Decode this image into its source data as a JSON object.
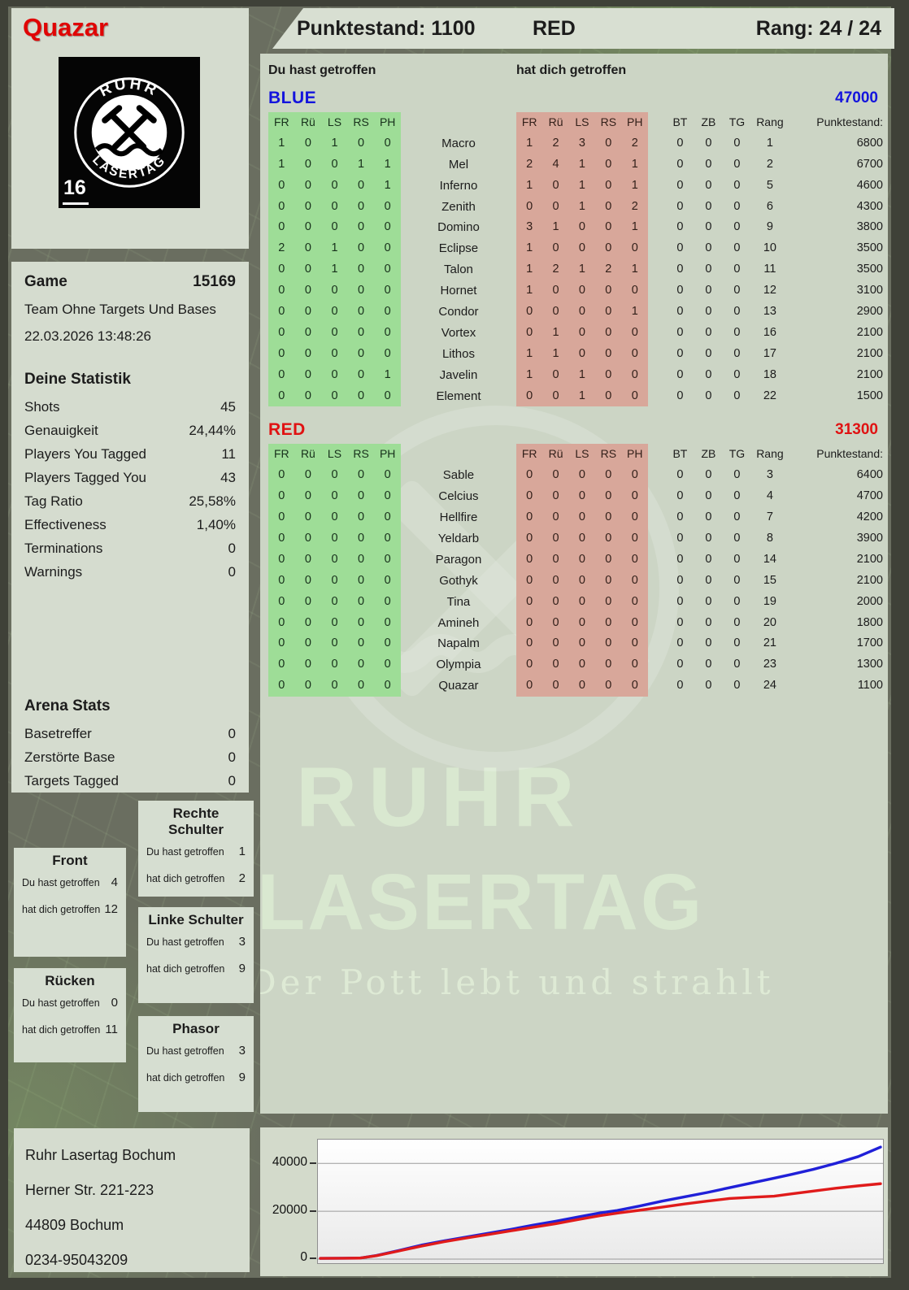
{
  "player": {
    "name": "Quazar"
  },
  "header": {
    "punktestand": "Punktestand: 1100",
    "team": "RED",
    "rang": "Rang: 24 / 24"
  },
  "logo": {
    "arc_top": "RUHR",
    "arc_bottom": "LASERTAG",
    "badge": "16"
  },
  "game": {
    "label": "Game",
    "number": "15169",
    "mode": "Team Ohne Targets Und Bases",
    "datetime": "22.03.2026 13:48:26"
  },
  "stats": {
    "title": "Deine Statistik",
    "rows": [
      [
        "Shots",
        "45"
      ],
      [
        "Genauigkeit",
        "24,44%"
      ],
      [
        "Players You Tagged",
        "11"
      ],
      [
        "Players Tagged You",
        "43"
      ],
      [
        "Tag Ratio",
        "25,58%"
      ],
      [
        "Effectiveness",
        "1,40%"
      ],
      [
        "Terminations",
        "0"
      ],
      [
        "Warnings",
        "0"
      ]
    ]
  },
  "arena": {
    "title": "Arena Stats",
    "rows": [
      [
        "Basetreffer",
        "0"
      ],
      [
        "Zerstörte Base",
        "0"
      ],
      [
        "Targets Tagged",
        "0"
      ]
    ]
  },
  "hit_labels": {
    "du": "Du hast getroffen",
    "dich": "hat dich getroffen"
  },
  "hitzones": [
    {
      "title": "Rechte Schulter",
      "du": "1",
      "dich": "2"
    },
    {
      "title": "Front",
      "du": "4",
      "dich": "12"
    },
    {
      "title": "Linke Schulter",
      "du": "3",
      "dich": "9"
    },
    {
      "title": "Rücken",
      "du": "0",
      "dich": "11"
    },
    {
      "title": "Phasor",
      "du": "3",
      "dich": "9"
    }
  ],
  "address": {
    "lines": [
      "Ruhr Lasertag Bochum",
      "Herner Str. 221-223",
      "44809 Bochum",
      "0234-95043209"
    ]
  },
  "tables": {
    "du_label": "Du hast getroffen",
    "dich_label": "hat dich getroffen",
    "col_headers_left": [
      "FR",
      "Rü",
      "LS",
      "RS",
      "PH"
    ],
    "col_headers_right": [
      "BT",
      "ZB",
      "TG",
      "Rang",
      "Punktestand:"
    ],
    "teams": [
      {
        "name": "BLUE",
        "color": "#1414dd",
        "total": "47000",
        "rows": [
          {
            "player": "Macro",
            "du": [
              "1",
              "0",
              "1",
              "0",
              "0"
            ],
            "dich": [
              "1",
              "2",
              "3",
              "0",
              "2"
            ],
            "bt": "0",
            "zb": "0",
            "tg": "0",
            "rang": "1",
            "punkte": "6800"
          },
          {
            "player": "Mel",
            "du": [
              "1",
              "0",
              "0",
              "1",
              "1"
            ],
            "dich": [
              "2",
              "4",
              "1",
              "0",
              "1"
            ],
            "bt": "0",
            "zb": "0",
            "tg": "0",
            "rang": "2",
            "punkte": "6700"
          },
          {
            "player": "Inferno",
            "du": [
              "0",
              "0",
              "0",
              "0",
              "1"
            ],
            "dich": [
              "1",
              "0",
              "1",
              "0",
              "1"
            ],
            "bt": "0",
            "zb": "0",
            "tg": "0",
            "rang": "5",
            "punkte": "4600"
          },
          {
            "player": "Zenith",
            "du": [
              "0",
              "0",
              "0",
              "0",
              "0"
            ],
            "dich": [
              "0",
              "0",
              "1",
              "0",
              "2"
            ],
            "bt": "0",
            "zb": "0",
            "tg": "0",
            "rang": "6",
            "punkte": "4300"
          },
          {
            "player": "Domino",
            "du": [
              "0",
              "0",
              "0",
              "0",
              "0"
            ],
            "dich": [
              "3",
              "1",
              "0",
              "0",
              "1"
            ],
            "bt": "0",
            "zb": "0",
            "tg": "0",
            "rang": "9",
            "punkte": "3800"
          },
          {
            "player": "Eclipse",
            "du": [
              "2",
              "0",
              "1",
              "0",
              "0"
            ],
            "dich": [
              "1",
              "0",
              "0",
              "0",
              "0"
            ],
            "bt": "0",
            "zb": "0",
            "tg": "0",
            "rang": "10",
            "punkte": "3500"
          },
          {
            "player": "Talon",
            "du": [
              "0",
              "0",
              "1",
              "0",
              "0"
            ],
            "dich": [
              "1",
              "2",
              "1",
              "2",
              "1"
            ],
            "bt": "0",
            "zb": "0",
            "tg": "0",
            "rang": "11",
            "punkte": "3500"
          },
          {
            "player": "Hornet",
            "du": [
              "0",
              "0",
              "0",
              "0",
              "0"
            ],
            "dich": [
              "1",
              "0",
              "0",
              "0",
              "0"
            ],
            "bt": "0",
            "zb": "0",
            "tg": "0",
            "rang": "12",
            "punkte": "3100"
          },
          {
            "player": "Condor",
            "du": [
              "0",
              "0",
              "0",
              "0",
              "0"
            ],
            "dich": [
              "0",
              "0",
              "0",
              "0",
              "1"
            ],
            "bt": "0",
            "zb": "0",
            "tg": "0",
            "rang": "13",
            "punkte": "2900"
          },
          {
            "player": "Vortex",
            "du": [
              "0",
              "0",
              "0",
              "0",
              "0"
            ],
            "dich": [
              "0",
              "1",
              "0",
              "0",
              "0"
            ],
            "bt": "0",
            "zb": "0",
            "tg": "0",
            "rang": "16",
            "punkte": "2100"
          },
          {
            "player": "Lithos",
            "du": [
              "0",
              "0",
              "0",
              "0",
              "0"
            ],
            "dich": [
              "1",
              "1",
              "0",
              "0",
              "0"
            ],
            "bt": "0",
            "zb": "0",
            "tg": "0",
            "rang": "17",
            "punkte": "2100"
          },
          {
            "player": "Javelin",
            "du": [
              "0",
              "0",
              "0",
              "0",
              "1"
            ],
            "dich": [
              "1",
              "0",
              "1",
              "0",
              "0"
            ],
            "bt": "0",
            "zb": "0",
            "tg": "0",
            "rang": "18",
            "punkte": "2100"
          },
          {
            "player": "Element",
            "du": [
              "0",
              "0",
              "0",
              "0",
              "0"
            ],
            "dich": [
              "0",
              "0",
              "1",
              "0",
              "0"
            ],
            "bt": "0",
            "zb": "0",
            "tg": "0",
            "rang": "22",
            "punkte": "1500"
          }
        ]
      },
      {
        "name": "RED",
        "color": "#e01212",
        "total": "31300",
        "rows": [
          {
            "player": "Sable",
            "du": [
              "0",
              "0",
              "0",
              "0",
              "0"
            ],
            "dich": [
              "0",
              "0",
              "0",
              "0",
              "0"
            ],
            "bt": "0",
            "zb": "0",
            "tg": "0",
            "rang": "3",
            "punkte": "6400"
          },
          {
            "player": "Celcius",
            "du": [
              "0",
              "0",
              "0",
              "0",
              "0"
            ],
            "dich": [
              "0",
              "0",
              "0",
              "0",
              "0"
            ],
            "bt": "0",
            "zb": "0",
            "tg": "0",
            "rang": "4",
            "punkte": "4700"
          },
          {
            "player": "Hellfire",
            "du": [
              "0",
              "0",
              "0",
              "0",
              "0"
            ],
            "dich": [
              "0",
              "0",
              "0",
              "0",
              "0"
            ],
            "bt": "0",
            "zb": "0",
            "tg": "0",
            "rang": "7",
            "punkte": "4200"
          },
          {
            "player": "Yeldarb",
            "du": [
              "0",
              "0",
              "0",
              "0",
              "0"
            ],
            "dich": [
              "0",
              "0",
              "0",
              "0",
              "0"
            ],
            "bt": "0",
            "zb": "0",
            "tg": "0",
            "rang": "8",
            "punkte": "3900"
          },
          {
            "player": "Paragon",
            "du": [
              "0",
              "0",
              "0",
              "0",
              "0"
            ],
            "dich": [
              "0",
              "0",
              "0",
              "0",
              "0"
            ],
            "bt": "0",
            "zb": "0",
            "tg": "0",
            "rang": "14",
            "punkte": "2100"
          },
          {
            "player": "Gothyk",
            "du": [
              "0",
              "0",
              "0",
              "0",
              "0"
            ],
            "dich": [
              "0",
              "0",
              "0",
              "0",
              "0"
            ],
            "bt": "0",
            "zb": "0",
            "tg": "0",
            "rang": "15",
            "punkte": "2100"
          },
          {
            "player": "Tina",
            "du": [
              "0",
              "0",
              "0",
              "0",
              "0"
            ],
            "dich": [
              "0",
              "0",
              "0",
              "0",
              "0"
            ],
            "bt": "0",
            "zb": "0",
            "tg": "0",
            "rang": "19",
            "punkte": "2000"
          },
          {
            "player": "Amineh",
            "du": [
              "0",
              "0",
              "0",
              "0",
              "0"
            ],
            "dich": [
              "0",
              "0",
              "0",
              "0",
              "0"
            ],
            "bt": "0",
            "zb": "0",
            "tg": "0",
            "rang": "20",
            "punkte": "1800"
          },
          {
            "player": "Napalm",
            "du": [
              "0",
              "0",
              "0",
              "0",
              "0"
            ],
            "dich": [
              "0",
              "0",
              "0",
              "0",
              "0"
            ],
            "bt": "0",
            "zb": "0",
            "tg": "0",
            "rang": "21",
            "punkte": "1700"
          },
          {
            "player": "Olympia",
            "du": [
              "0",
              "0",
              "0",
              "0",
              "0"
            ],
            "dich": [
              "0",
              "0",
              "0",
              "0",
              "0"
            ],
            "bt": "0",
            "zb": "0",
            "tg": "0",
            "rang": "23",
            "punkte": "1300"
          },
          {
            "player": "Quazar",
            "du": [
              "0",
              "0",
              "0",
              "0",
              "0"
            ],
            "dich": [
              "0",
              "0",
              "0",
              "0",
              "0"
            ],
            "bt": "0",
            "zb": "0",
            "tg": "0",
            "rang": "24",
            "punkte": "1100"
          }
        ]
      }
    ]
  },
  "watermark": {
    "line1": "RUHR",
    "line2": "LASERTAG",
    "tagline": "Der Pott lebt und strahlt"
  },
  "chart_data": {
    "type": "line",
    "title": "",
    "xlabel": "",
    "ylabel": "",
    "yticks": [
      0,
      20000,
      40000
    ],
    "ytick_labels": [
      "0",
      "20000",
      "40000"
    ],
    "ylim": [
      0,
      49000
    ],
    "xlim_percent": [
      0,
      100
    ],
    "grid": true,
    "legend": "none",
    "series": [
      {
        "name": "BLUE",
        "color": "#2020d8",
        "points": [
          [
            0,
            300
          ],
          [
            4,
            350
          ],
          [
            7,
            400
          ],
          [
            10,
            1500
          ],
          [
            14,
            3600
          ],
          [
            18,
            5800
          ],
          [
            22,
            7600
          ],
          [
            26,
            9200
          ],
          [
            30,
            10800
          ],
          [
            34,
            12400
          ],
          [
            38,
            14200
          ],
          [
            42,
            15800
          ],
          [
            46,
            17600
          ],
          [
            50,
            19300
          ],
          [
            53,
            20300
          ],
          [
            57,
            22200
          ],
          [
            61,
            24200
          ],
          [
            65,
            26000
          ],
          [
            69,
            27800
          ],
          [
            73,
            29800
          ],
          [
            77,
            31800
          ],
          [
            81,
            33800
          ],
          [
            84,
            35300
          ],
          [
            88,
            37500
          ],
          [
            92,
            40000
          ],
          [
            96,
            42800
          ],
          [
            100,
            46800
          ]
        ]
      },
      {
        "name": "RED",
        "color": "#e01b1b",
        "points": [
          [
            0,
            300
          ],
          [
            4,
            350
          ],
          [
            7,
            400
          ],
          [
            10,
            1400
          ],
          [
            14,
            3400
          ],
          [
            18,
            5400
          ],
          [
            22,
            7200
          ],
          [
            26,
            8800
          ],
          [
            30,
            10300
          ],
          [
            34,
            11800
          ],
          [
            38,
            13300
          ],
          [
            42,
            14800
          ],
          [
            46,
            16500
          ],
          [
            50,
            18200
          ],
          [
            53,
            19200
          ],
          [
            57,
            20400
          ],
          [
            61,
            21700
          ],
          [
            65,
            23000
          ],
          [
            69,
            24200
          ],
          [
            73,
            25300
          ],
          [
            77,
            25800
          ],
          [
            81,
            26300
          ],
          [
            84,
            27200
          ],
          [
            88,
            28400
          ],
          [
            92,
            29600
          ],
          [
            96,
            30600
          ],
          [
            100,
            31500
          ]
        ]
      }
    ]
  }
}
